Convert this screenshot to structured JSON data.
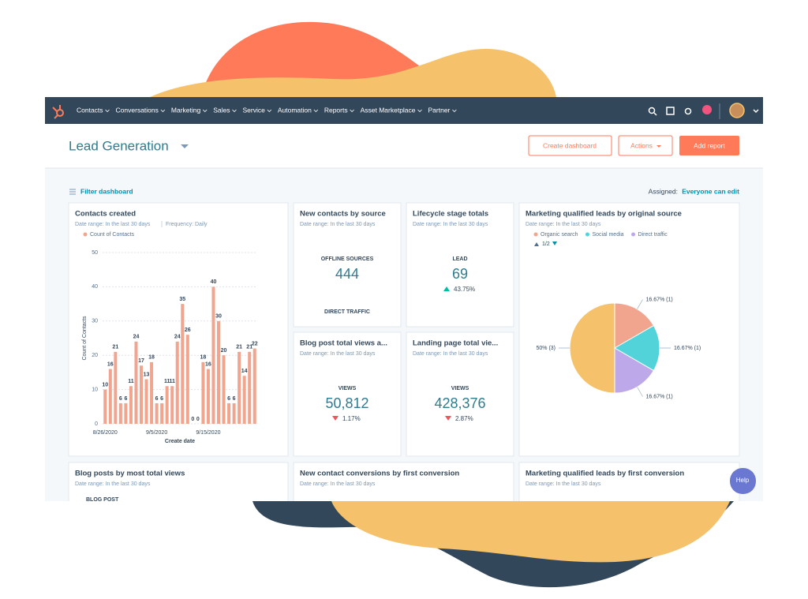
{
  "nav": {
    "items": [
      "Contacts",
      "Conversations",
      "Marketing",
      "Sales",
      "Service",
      "Automation",
      "Reports",
      "Asset Marketplace",
      "Partner"
    ]
  },
  "header": {
    "title": "Lead Generation",
    "buttons": [
      "Create dashboard",
      "Actions",
      "Add report"
    ]
  },
  "filter": {
    "filter": "Filter dashboard",
    "assigned_label": "Assigned:",
    "assigned_value": "Everyone can edit"
  },
  "cards": [
    {
      "title": "Contacts created",
      "date_range": "Date range: In the last 30 days",
      "frequency": "Frequency: Daily",
      "chart": {
        "type": "bar",
        "categories": [
          "8/26/2020",
          null,
          null,
          null,
          null,
          null,
          null,
          null,
          null,
          null,
          "9/5/2020",
          null,
          null,
          null,
          null,
          null,
          null,
          null,
          null,
          null,
          "9/15/2020",
          null,
          null,
          null,
          null,
          null,
          null,
          null,
          null,
          null
        ],
        "series": [
          {
            "name": "Count of Contacts",
            "color": "#f2a58e",
            "values": [
              10,
              16,
              21,
              6,
              6,
              11,
              24,
              17,
              13,
              18,
              6,
              6,
              11,
              11,
              24,
              35,
              26,
              0,
              0,
              18,
              16,
              40,
              30,
              20,
              6,
              6,
              21,
              14,
              21,
              22
            ]
          }
        ],
        "x_label": "Create date",
        "y_label": "Count of Contacts",
        "ylim": [
          0,
          50
        ],
        "yticks": [
          0,
          10,
          20,
          30,
          40,
          50
        ],
        "grid": true
      }
    },
    {
      "title": "New contacts by source",
      "date_range": "Date range: In the last 30 days",
      "label": "OFFLINE SOURCES",
      "value": "444",
      "footer": "DIRECT TRAFFIC"
    },
    {
      "title": "Lifecycle stage totals",
      "date_range": "Date range: In the last 30 days",
      "label": "LEAD",
      "value": "69",
      "change": "43.75%",
      "trend": "up"
    },
    {
      "title": "Marketing qualified leads by original source",
      "date_range": "Date range: In the last 30 days",
      "legend_page": "1/2",
      "chart": {
        "type": "pie",
        "categories": [
          "Organic search",
          "Social media",
          "Direct traffic",
          null
        ],
        "values": [
          16.67,
          16.67,
          16.67,
          50
        ],
        "value_labels": [
          "16.67% (1)",
          "16.67% (1)",
          "16.67% (1)",
          "50% (3)"
        ],
        "colors": [
          "#f2a58e",
          "#51d3d9",
          "#bda9ea",
          "#f5c26b"
        ]
      }
    },
    {
      "title": "Blog post total views a...",
      "date_range": "Date range: In the last 30 days",
      "label": "VIEWS",
      "value": "50,812",
      "change": "1.17%",
      "trend": "down"
    },
    {
      "title": "Landing page total vie...",
      "date_range": "Date range: In the last 30 days",
      "label": "VIEWS",
      "value": "428,376",
      "change": "2.87%",
      "trend": "down"
    },
    {
      "title": "Blog posts by most total views",
      "date_range": "Date range: In the last 30 days",
      "label": "BLOG POST"
    },
    {
      "title": "New contact conversions by first conversion",
      "date_range": "Date range: In the last 30 days"
    },
    {
      "title": "Marketing qualified leads by first conversion",
      "date_range": "Date range: In the last 30 days"
    }
  ],
  "help": "Help"
}
